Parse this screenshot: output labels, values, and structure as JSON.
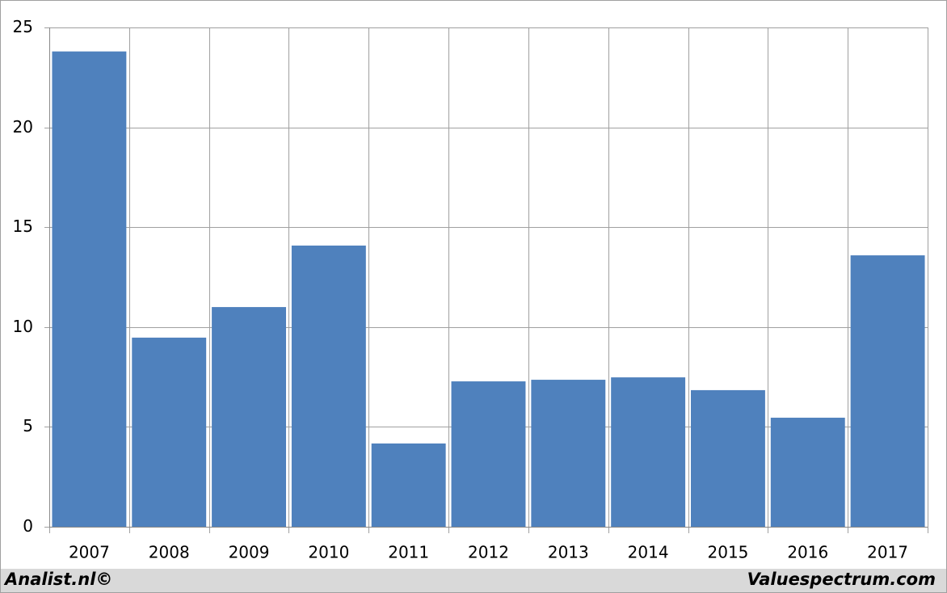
{
  "chart_data": {
    "type": "bar",
    "categories": [
      "2007",
      "2008",
      "2009",
      "2010",
      "2011",
      "2012",
      "2013",
      "2014",
      "2015",
      "2016",
      "2017"
    ],
    "values": [
      23.8,
      9.47,
      11.0,
      14.08,
      4.17,
      7.28,
      7.36,
      7.48,
      6.84,
      5.46,
      13.59
    ],
    "color": "#4f81bd",
    "ylim": [
      0,
      25
    ],
    "yticks": [
      0,
      5,
      10,
      15,
      20,
      25
    ],
    "grid": true,
    "footer_left": "Analist.nl©",
    "footer_right": "Valuespectrum.com"
  }
}
